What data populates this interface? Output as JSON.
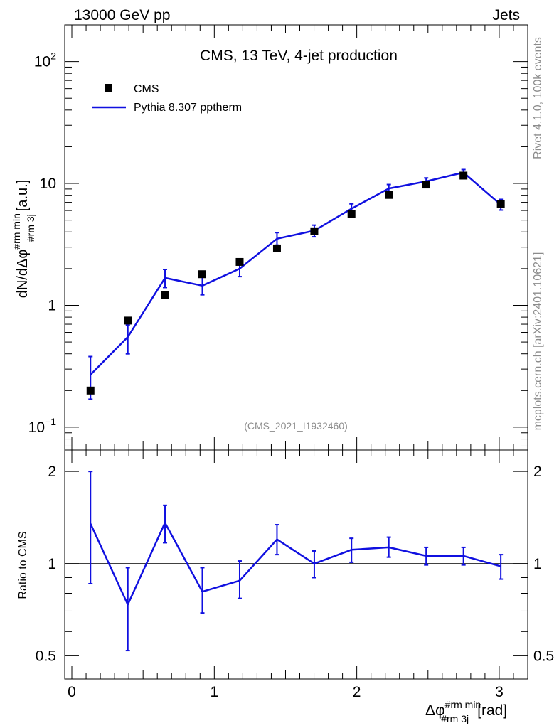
{
  "header": {
    "left": "13000 GeV pp",
    "right": "Jets"
  },
  "side_text": {
    "rivet": "Rivet 4.1.0,  100k events",
    "mcplots": "mcplots.cern.ch [arXiv:2401.10621]"
  },
  "colors": {
    "mc": "#1010e0",
    "data": "#000000",
    "watermark": "#8c8c8c"
  },
  "chart_data": [
    {
      "type": "line",
      "panel": "main",
      "title": "CMS, 13 TeV, 4-jet production",
      "ylabel": "dN/dΔφ^{#rm min}_{#rm 3j} [a.u.]",
      "ylabel_main": "dN/dΔφ",
      "ylabel_sup": "#rm min",
      "ylabel_sub": "#rm 3j",
      "ylabel_unit": "[a.u.]",
      "yscale": "log",
      "ylim": [
        0.065,
        200
      ],
      "xlim": [
        -0.05,
        3.2
      ],
      "yticks": [
        {
          "value": 0.1,
          "base": "10",
          "exp": "−1"
        },
        {
          "value": 1,
          "base": "1",
          "exp": ""
        },
        {
          "value": 10,
          "base": "10",
          "exp": ""
        },
        {
          "value": 100,
          "base": "10",
          "exp": "2"
        }
      ],
      "analysis_tag": "(CMS_2021_I1932460)",
      "legend": [
        "CMS",
        "Pythia 8.307 pptherm"
      ],
      "legend_position": "top-left",
      "x": [
        0.131,
        0.393,
        0.654,
        0.916,
        1.178,
        1.44,
        1.702,
        1.963,
        2.225,
        2.487,
        2.749,
        3.011
      ],
      "series": [
        {
          "name": "CMS",
          "style": "markers",
          "values": [
            0.2,
            0.75,
            1.22,
            1.8,
            2.27,
            2.93,
            4.05,
            5.6,
            8.05,
            9.8,
            11.6,
            6.75
          ]
        },
        {
          "name": "Pythia 8.307 pptherm",
          "style": "line",
          "values": [
            0.27,
            0.55,
            1.68,
            1.45,
            2.0,
            3.52,
            4.1,
            6.2,
            9.1,
            10.4,
            12.3,
            6.7
          ],
          "err_low": [
            0.17,
            0.4,
            1.4,
            1.22,
            1.72,
            3.12,
            3.65,
            5.65,
            8.45,
            9.7,
            11.6,
            6.05
          ],
          "err_high": [
            0.38,
            0.69,
            1.97,
            1.7,
            2.32,
            3.95,
            4.55,
            6.8,
            9.8,
            11.1,
            13.0,
            7.4
          ]
        }
      ]
    },
    {
      "type": "line",
      "panel": "ratio",
      "ylabel": "Ratio to CMS",
      "yscale": "log",
      "ylim": [
        0.42,
        2.35
      ],
      "xlim": [
        -0.05,
        3.2
      ],
      "yticks": [
        {
          "value": 0.5,
          "label": "0.5"
        },
        {
          "value": 1,
          "label": "1"
        },
        {
          "value": 2,
          "label": "2"
        }
      ],
      "xticks": [
        {
          "value": 0,
          "label": "0"
        },
        {
          "value": 1,
          "label": "1"
        },
        {
          "value": 2,
          "label": "2"
        },
        {
          "value": 3,
          "label": "3"
        }
      ],
      "xlabel": "Δφ^{#rm min}_{#rm 3j} [rad]",
      "xlabel_main": "Δφ",
      "xlabel_sup": "#rm min",
      "xlabel_sub": "#rm 3j",
      "xlabel_unit": "[rad]",
      "x": [
        0.131,
        0.393,
        0.654,
        0.916,
        1.178,
        1.44,
        1.702,
        1.963,
        2.225,
        2.487,
        2.749,
        3.011
      ],
      "series": [
        {
          "name": "Pythia 8.307 pptherm / CMS",
          "values": [
            1.35,
            0.735,
            1.36,
            0.81,
            0.88,
            1.2,
            1.0,
            1.11,
            1.13,
            1.06,
            1.06,
            0.98
          ],
          "err_low": [
            0.86,
            0.52,
            1.17,
            0.69,
            0.77,
            1.07,
            0.9,
            1.01,
            1.05,
            0.99,
            0.99,
            0.89
          ],
          "err_high": [
            2.0,
            0.97,
            1.55,
            0.97,
            1.02,
            1.34,
            1.1,
            1.21,
            1.22,
            1.13,
            1.13,
            1.07
          ]
        }
      ]
    }
  ]
}
